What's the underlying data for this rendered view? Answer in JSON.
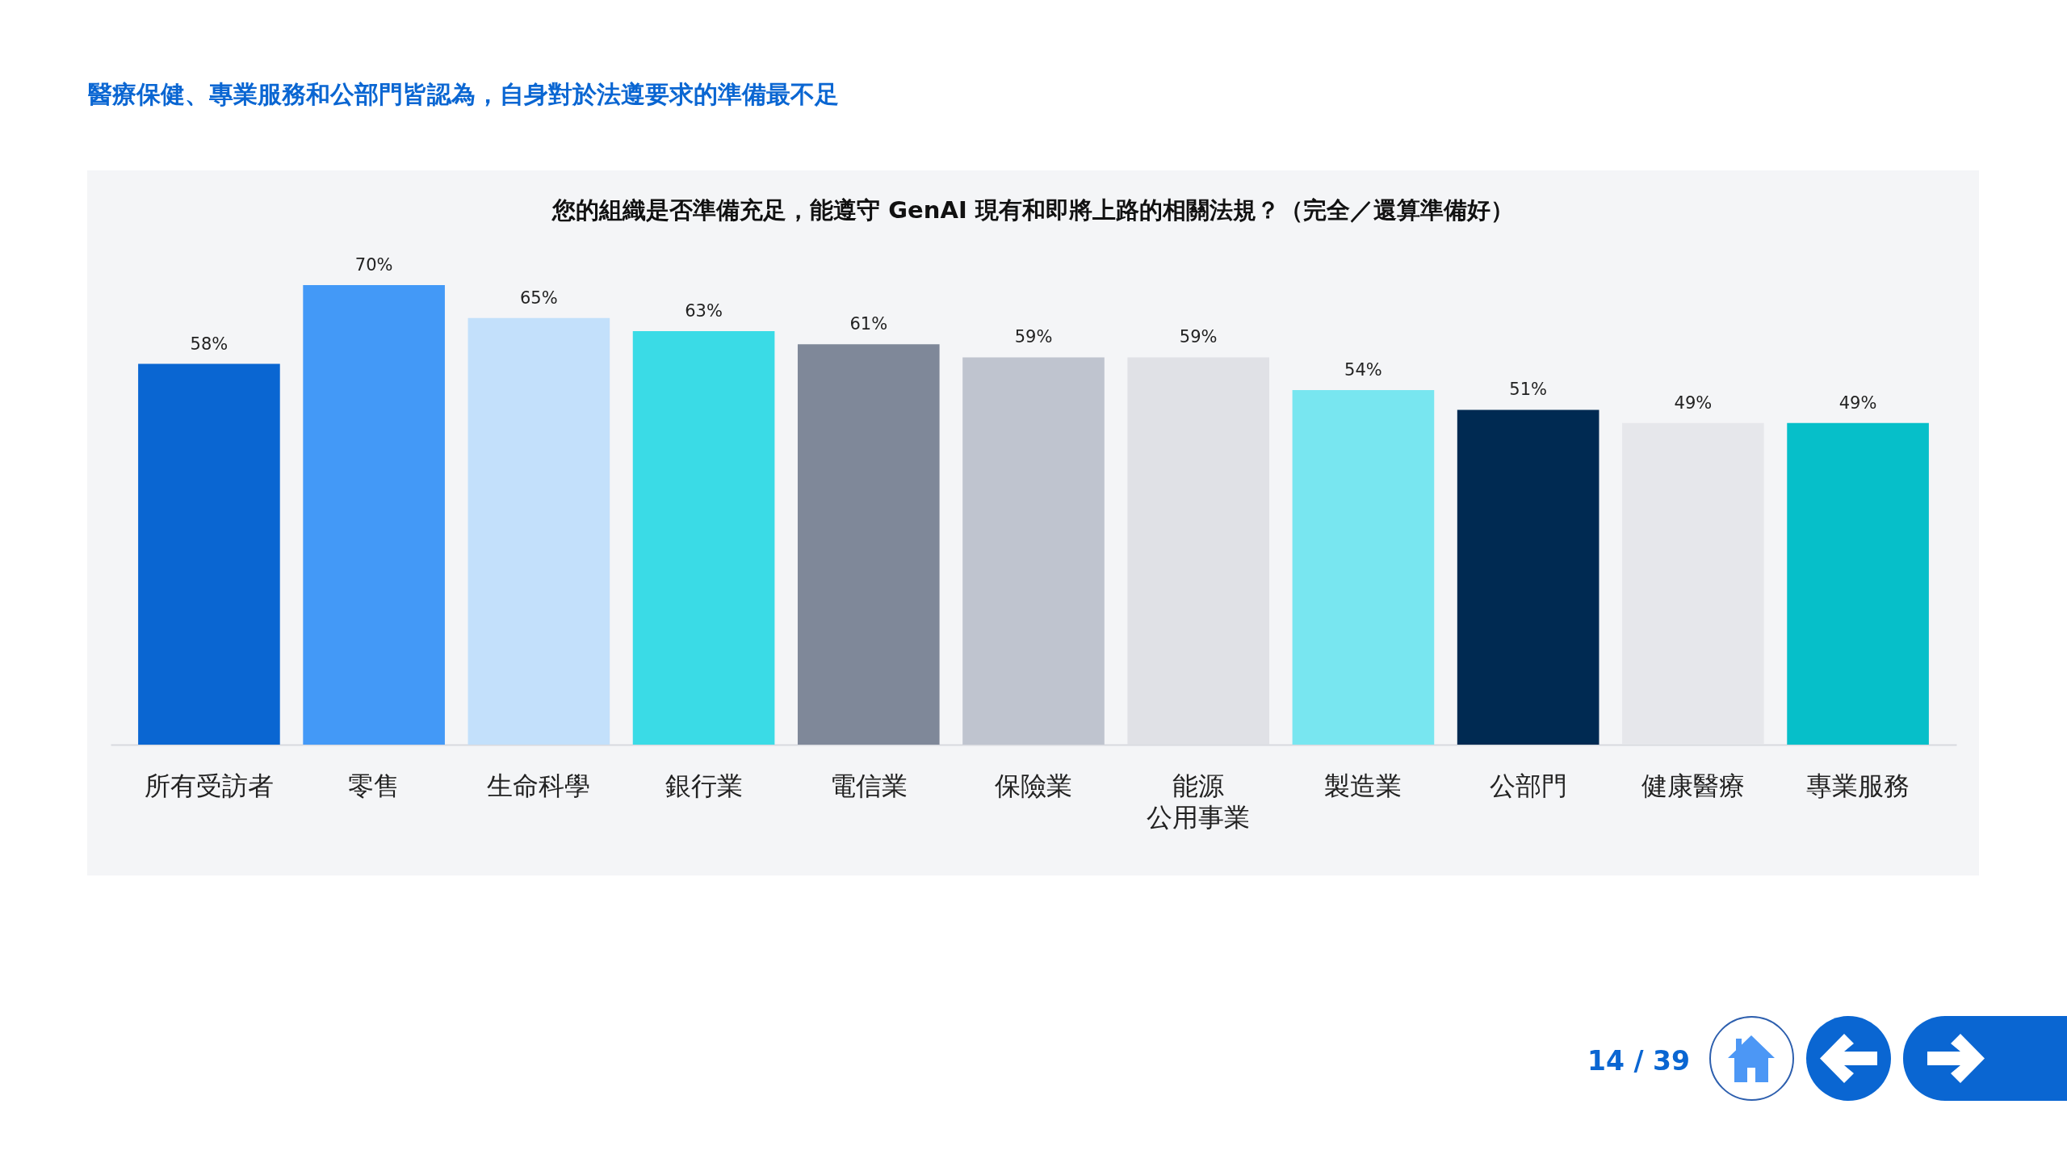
{
  "chart_data": {
    "type": "bar",
    "title": "醫療保健、專業服務和公部門皆認為，自身對於法遵要求的準備最不足",
    "subtitle": "您的組織是否準備充足，能遵守 GenAI 現有和即將上路的相關法規？（完全／還算準備好）",
    "categories": [
      "所有受訪者",
      "零售",
      "生命科學",
      "銀行業",
      "電信業",
      "保險業",
      "能源公用事業",
      "製造業",
      "公部門",
      "健康醫療",
      "專業服務"
    ],
    "values": [
      58,
      70,
      65,
      63,
      61,
      59,
      59,
      54,
      51,
      49,
      49
    ],
    "value_labels": [
      "58%",
      "70%",
      "65%",
      "63%",
      "61%",
      "59%",
      "59%",
      "54%",
      "51%",
      "49%",
      "49%"
    ],
    "colors": [
      "#0a66d2",
      "#4399f7",
      "#c3e0fb",
      "#3adbe6",
      "#7f8899",
      "#bfc4cf",
      "#e0e1e6",
      "#78e6f0",
      "#002a52",
      "#e6e7eb",
      "#06bfc9"
    ],
    "annotations": [
      "14 / 39"
    ]
  }
}
